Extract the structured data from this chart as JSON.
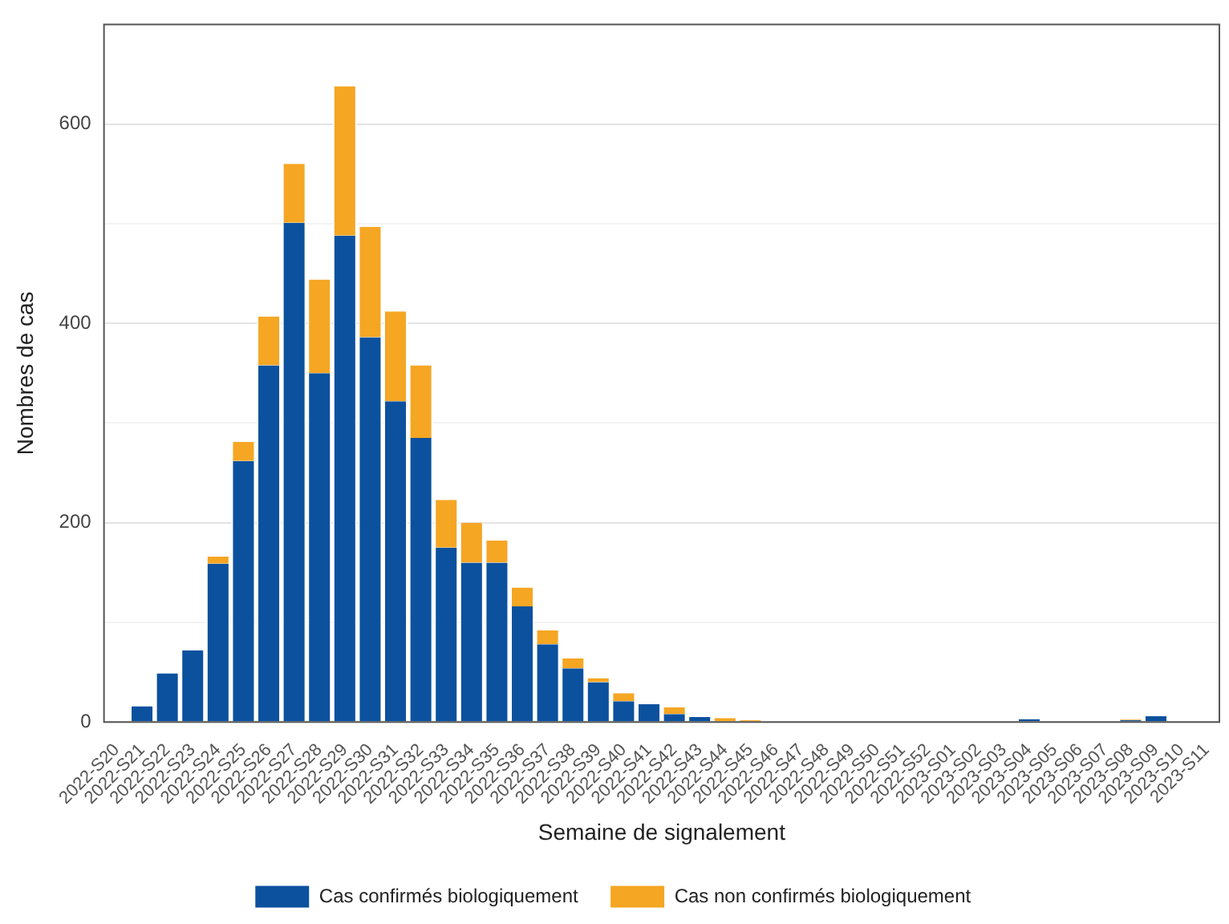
{
  "chart_data": {
    "type": "bar",
    "stacked": true,
    "xlabel": "Semaine de signalement",
    "ylabel": "Nombres de cas",
    "categories": [
      "2022-S20",
      "2022-S21",
      "2022-S22",
      "2022-S23",
      "2022-S24",
      "2022-S25",
      "2022-S26",
      "2022-S27",
      "2022-S28",
      "2022-S29",
      "2022-S30",
      "2022-S31",
      "2022-S32",
      "2022-S33",
      "2022-S34",
      "2022-S35",
      "2022-S36",
      "2022-S37",
      "2022-S38",
      "2022-S39",
      "2022-S40",
      "2022-S41",
      "2022-S42",
      "2022-S43",
      "2022-S44",
      "2022-S45",
      "2022-S46",
      "2022-S47",
      "2022-S48",
      "2022-S49",
      "2022-S50",
      "2022-S51",
      "2022-S52",
      "2023-S01",
      "2023-S02",
      "2023-S03",
      "2023-S04",
      "2023-S05",
      "2023-S06",
      "2023-S07",
      "2023-S08",
      "2023-S09",
      "2023-S10",
      "2023-S11"
    ],
    "series": [
      {
        "name": "Cas confirmés biologiquement",
        "color": "#0b519e",
        "values": [
          1,
          16,
          49,
          72,
          159,
          262,
          358,
          501,
          350,
          488,
          386,
          322,
          285,
          175,
          160,
          160,
          116,
          78,
          54,
          40,
          21,
          18,
          8,
          5,
          1,
          1,
          1,
          0,
          1,
          0,
          1,
          1,
          0,
          1,
          1,
          0,
          3,
          0,
          0,
          0,
          2,
          6,
          1,
          0
        ]
      },
      {
        "name": "Cas non confirmés biologiquement",
        "color": "#f5a623",
        "values": [
          0,
          0,
          0,
          0,
          7,
          19,
          49,
          59,
          94,
          150,
          111,
          90,
          73,
          48,
          40,
          22,
          19,
          14,
          10,
          4,
          8,
          0,
          7,
          0,
          3,
          1,
          0,
          0,
          0,
          0,
          0,
          0,
          0,
          0,
          0,
          0,
          0,
          0,
          0,
          0,
          1,
          0,
          0,
          0
        ]
      }
    ],
    "ylim": [
      0,
      700
    ],
    "yticks": [
      0,
      {
        "value": 100,
        "label": null
      },
      200,
      {
        "value": 300,
        "label": null
      },
      400,
      {
        "value": 500,
        "label": null
      },
      600
    ],
    "grid": "y",
    "legend": "bottom"
  }
}
